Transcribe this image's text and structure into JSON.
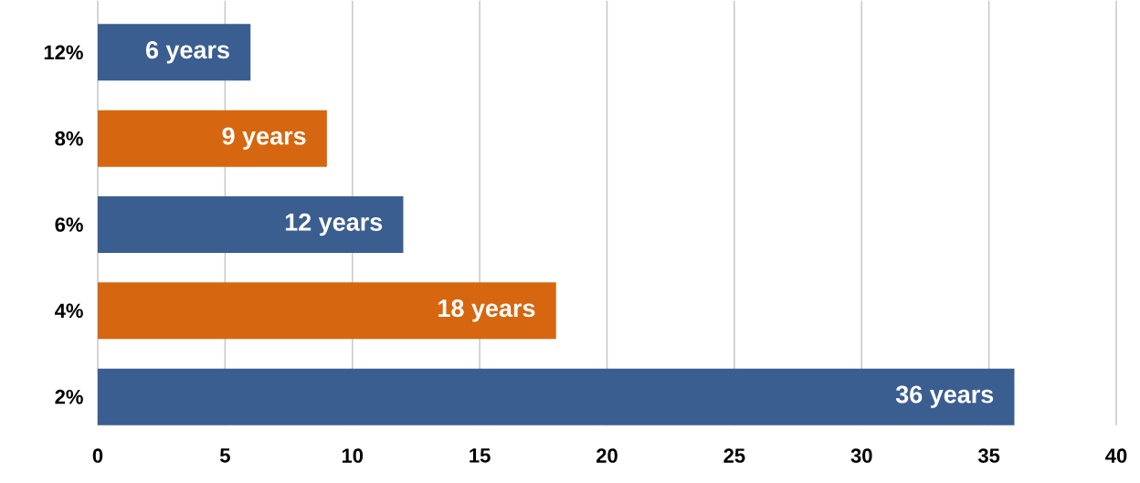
{
  "chart_data": {
    "type": "bar",
    "orientation": "horizontal",
    "categories": [
      "12%",
      "8%",
      "6%",
      "4%",
      "2%"
    ],
    "values": [
      6,
      9,
      12,
      18,
      36
    ],
    "colors": [
      "#3b5e91",
      "#d6660f",
      "#3b5e91",
      "#d6660f",
      "#3b5e91"
    ],
    "value_labels": [
      "6 years",
      "9 years",
      "12 years",
      "18 years",
      "36 years"
    ],
    "xlim": [
      0,
      40
    ],
    "xticks": [
      0,
      5,
      10,
      15,
      20,
      25,
      30,
      35,
      40
    ],
    "grid": "x"
  }
}
